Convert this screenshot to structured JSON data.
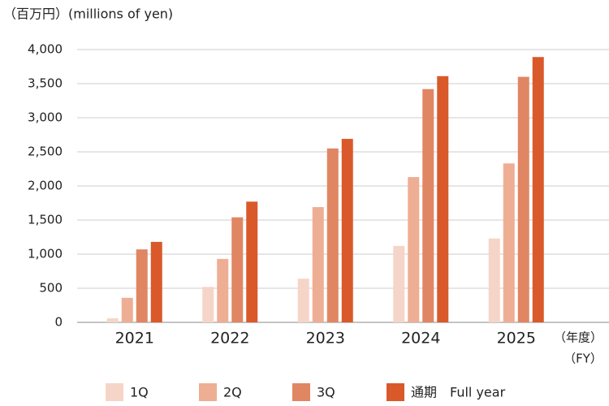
{
  "chart_data": {
    "type": "bar",
    "title": "（百万円）(millions of yen)",
    "x_label": "（年度）",
    "x_label_sub": "（FY）",
    "categories": [
      "2021",
      "2022",
      "2023",
      "2024",
      "2025"
    ],
    "series": [
      {
        "name": "1Q",
        "color": "#f5d5c8",
        "values": [
          60,
          520,
          640,
          1120,
          1230
        ]
      },
      {
        "name": "2Q",
        "color": "#eeae93",
        "values": [
          360,
          930,
          1690,
          2130,
          2330
        ]
      },
      {
        "name": "3Q",
        "color": "#e08663",
        "values": [
          1070,
          1540,
          2550,
          3420,
          3600
        ]
      },
      {
        "name": "通期　Full year",
        "color": "#d9592a",
        "values": [
          1180,
          1770,
          2690,
          3610,
          3890
        ]
      }
    ],
    "ylim": [
      0,
      4000
    ],
    "yticks": [
      0,
      500,
      {
        "value": 1000,
        "label": "1,000"
      },
      {
        "value": 1500,
        "label": "1,500"
      },
      {
        "value": 2000,
        "label": "2,000"
      },
      {
        "value": 2500,
        "label": "2,500"
      },
      {
        "value": 3000,
        "label": "3,000"
      },
      {
        "value": 3500,
        "label": "3,500"
      },
      {
        "value": 4000,
        "label": "4,000"
      }
    ],
    "grid": true
  }
}
